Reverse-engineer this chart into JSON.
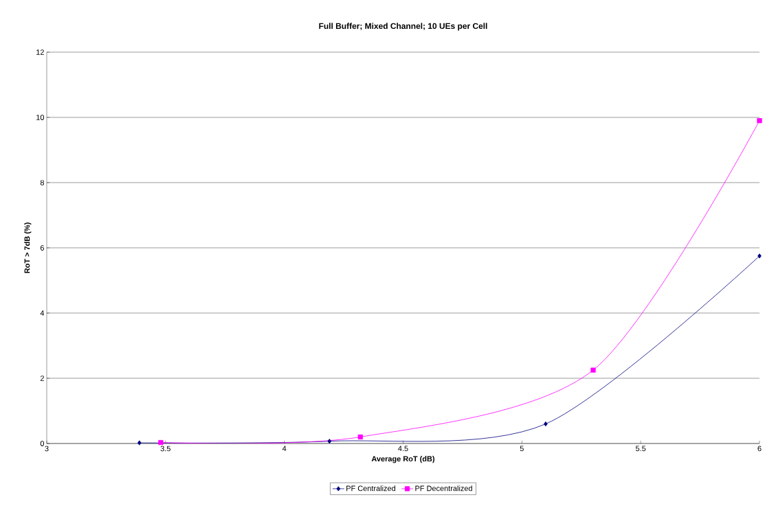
{
  "chart_data": {
    "type": "line",
    "title": "Full Buffer; Mixed Channel; 10 UEs per Cell",
    "xlabel": "Average RoT (dB)",
    "ylabel": "RoT > 7dB (%)",
    "xlim": [
      3,
      6
    ],
    "ylim": [
      0,
      12
    ],
    "xticks": [
      3,
      3.5,
      4,
      4.5,
      5,
      5.5,
      6
    ],
    "yticks": [
      0,
      2,
      4,
      6,
      8,
      10,
      12
    ],
    "grid": "y",
    "legend": "bottom",
    "series": [
      {
        "name": "PF Centralized",
        "color": "#000080",
        "marker": "diamond",
        "x": [
          3.39,
          4.19,
          5.1,
          6
        ],
        "values": [
          0.02,
          0.07,
          0.6,
          5.75
        ]
      },
      {
        "name": "PF Decentralized",
        "color": "#ff00ff",
        "marker": "square",
        "x": [
          3.48,
          4.32,
          5.3,
          6
        ],
        "values": [
          0.03,
          0.2,
          2.25,
          9.9
        ]
      }
    ]
  }
}
